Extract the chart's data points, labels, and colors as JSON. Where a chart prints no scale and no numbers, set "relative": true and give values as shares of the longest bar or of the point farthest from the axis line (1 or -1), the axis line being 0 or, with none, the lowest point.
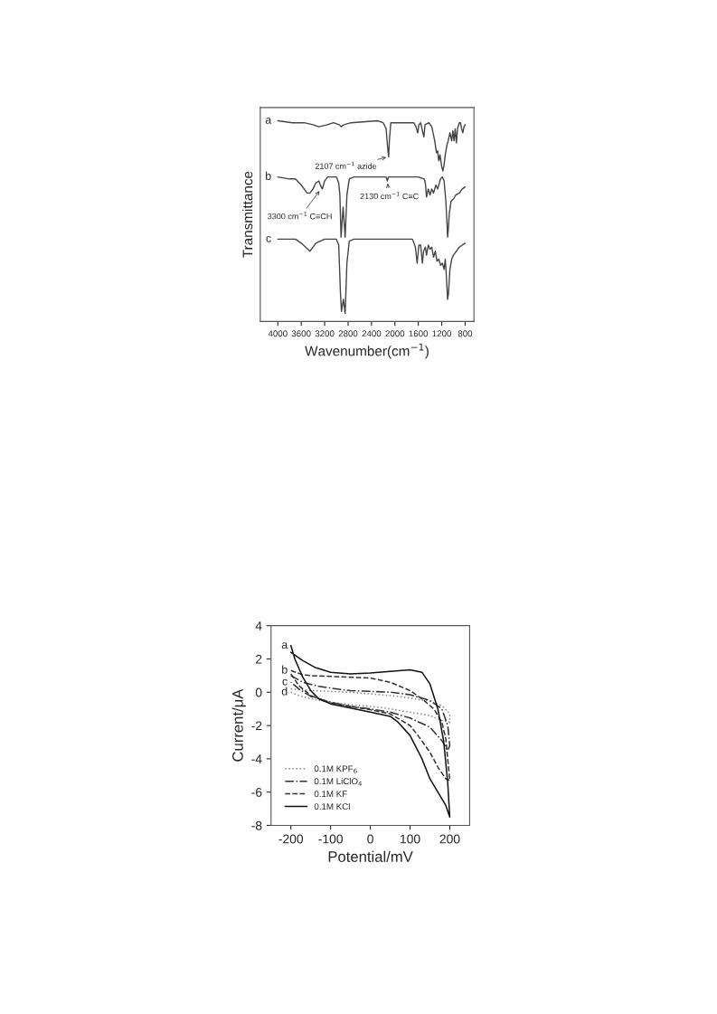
{
  "chart_data": [
    {
      "type": "line",
      "relative": true,
      "xlabel": "Wavenumber(cm$^{−1}$)",
      "ylabel": "Transmittance",
      "xlim": [
        4300,
        650
      ],
      "xticks": [
        4000,
        3600,
        3200,
        2800,
        2400,
        2000,
        1600,
        1200,
        800
      ],
      "grid": false,
      "legend": false,
      "marker": "none",
      "line_style": "solid",
      "series": [
        {
          "name": "a",
          "color": "#444444",
          "x": [
            4000,
            3750,
            3700,
            3550,
            3400,
            3300,
            3150,
            3050,
            2950,
            2920,
            2870,
            2750,
            2300,
            2200,
            2150,
            2120,
            2107,
            2095,
            2070,
            2000,
            1800,
            1720,
            1680,
            1640,
            1610,
            1590,
            1560,
            1530,
            1505,
            1485,
            1420,
            1370,
            1320,
            1290,
            1270,
            1250,
            1230,
            1200,
            1180,
            1160,
            1140,
            1110,
            1090,
            1060,
            1030,
            1010,
            990,
            970,
            950,
            930,
            900,
            880,
            860,
            840,
            820,
            800
          ],
          "values": [
            1.0,
            0.99,
            0.99,
            0.99,
            0.98,
            0.97,
            0.98,
            0.99,
            0.98,
            0.97,
            0.98,
            0.99,
            1.0,
            0.99,
            0.96,
            0.85,
            0.82,
            0.9,
            0.99,
            0.99,
            0.99,
            0.99,
            0.99,
            0.97,
            0.94,
            0.98,
            0.99,
            0.95,
            0.92,
            0.98,
            0.99,
            0.97,
            0.9,
            0.84,
            0.85,
            0.8,
            0.83,
            0.77,
            0.75,
            0.78,
            0.83,
            0.88,
            0.9,
            0.94,
            0.9,
            0.95,
            0.9,
            0.96,
            0.89,
            0.96,
            0.99,
            0.99,
            0.96,
            0.94,
            0.97,
            0.98
          ]
        },
        {
          "name": "b",
          "color": "#444444",
          "x": [
            4000,
            3800,
            3700,
            3600,
            3500,
            3450,
            3400,
            3350,
            3300,
            3260,
            3240,
            3200,
            3150,
            3000,
            2960,
            2940,
            2920,
            2885,
            2850,
            2820,
            2780,
            2700,
            2200,
            2150,
            2130,
            2110,
            1600,
            1500,
            1480,
            1460,
            1430,
            1400,
            1370,
            1340,
            1300,
            1270,
            1220,
            1190,
            1160,
            1130,
            1110,
            1100,
            1090,
            1070,
            1040,
            1000,
            960,
            900,
            850,
            800
          ],
          "values": [
            0.72,
            0.71,
            0.71,
            0.68,
            0.64,
            0.64,
            0.66,
            0.69,
            0.7,
            0.67,
            0.66,
            0.7,
            0.72,
            0.72,
            0.69,
            0.63,
            0.42,
            0.57,
            0.42,
            0.63,
            0.71,
            0.72,
            0.72,
            0.72,
            0.7,
            0.72,
            0.72,
            0.71,
            0.69,
            0.62,
            0.66,
            0.63,
            0.66,
            0.64,
            0.68,
            0.66,
            0.71,
            0.72,
            0.7,
            0.6,
            0.49,
            0.42,
            0.45,
            0.54,
            0.6,
            0.61,
            0.63,
            0.64,
            0.66,
            0.67
          ]
        },
        {
          "name": "c",
          "color": "#444444",
          "x": [
            4000,
            3700,
            3600,
            3450,
            3350,
            3200,
            3000,
            2960,
            2930,
            2913,
            2880,
            2850,
            2820,
            2780,
            2700,
            1800,
            1700,
            1650,
            1620,
            1590,
            1560,
            1530,
            1510,
            1480,
            1460,
            1430,
            1400,
            1370,
            1340,
            1310,
            1280,
            1250,
            1220,
            1190,
            1160,
            1140,
            1120,
            1100,
            1085,
            1060,
            1030,
            1000,
            950,
            900,
            850,
            800
          ],
          "values": [
            0.41,
            0.41,
            0.39,
            0.35,
            0.39,
            0.41,
            0.41,
            0.38,
            0.14,
            0.05,
            0.11,
            0.04,
            0.29,
            0.4,
            0.41,
            0.41,
            0.41,
            0.37,
            0.29,
            0.38,
            0.38,
            0.29,
            0.35,
            0.37,
            0.33,
            0.38,
            0.36,
            0.37,
            0.32,
            0.35,
            0.3,
            0.31,
            0.28,
            0.29,
            0.26,
            0.31,
            0.22,
            0.11,
            0.14,
            0.26,
            0.31,
            0.33,
            0.35,
            0.37,
            0.38,
            0.39
          ]
        }
      ],
      "annotations": [
        {
          "text": "2107 cm$^{−1}$ azide",
          "x": 2107,
          "y": 0.82
        },
        {
          "text": "3300 cm$^{−1}$ C≡CH",
          "x": 3260,
          "y": 0.66
        },
        {
          "text": "2130 cm$^{−1}$ C≡C",
          "x": 2130,
          "y": 0.7
        }
      ]
    },
    {
      "type": "line",
      "xlabel": "Potential/mV",
      "ylabel": "Current/μA",
      "xlim": [
        -250,
        250
      ],
      "xticks": [
        -200,
        -100,
        0,
        100,
        200
      ],
      "ylim": [
        -8,
        4
      ],
      "yticks": [
        -8,
        -6,
        -4,
        -2,
        0,
        2,
        4
      ],
      "grid": false,
      "legend": "bottom left",
      "marker": "none",
      "series": [
        {
          "name": "0.1M KPF$_{6}$",
          "color": "#888888",
          "line_style": "dotted",
          "x": [
            -200,
            -150,
            -100,
            -50,
            0,
            50,
            100,
            150,
            180,
            200,
            200,
            180,
            150,
            100,
            50,
            0,
            -50,
            -100,
            -150,
            -180,
            -200
          ],
          "values": [
            0.2,
            0.1,
            0.05,
            0.0,
            -0.1,
            -0.2,
            -0.35,
            -0.55,
            -0.8,
            -1.3,
            -1.8,
            -1.7,
            -1.4,
            -1.2,
            -1.0,
            -0.85,
            -0.75,
            -0.6,
            -0.4,
            -0.2,
            0.0
          ]
        },
        {
          "name": "0.1M LiClO$_{4}$",
          "color": "#333333",
          "line_style": "dashdot",
          "x": [
            -200,
            -170,
            -130,
            -100,
            -50,
            0,
            50,
            100,
            150,
            180,
            195,
            200,
            195,
            180,
            150,
            100,
            50,
            0,
            -50,
            -100,
            -150,
            -180,
            -200
          ],
          "values": [
            1.0,
            0.6,
            0.35,
            0.25,
            0.1,
            0.05,
            0.0,
            -0.15,
            -0.5,
            -1.0,
            -2.0,
            -3.2,
            -3.5,
            -2.9,
            -2.1,
            -1.55,
            -1.2,
            -1.0,
            -0.85,
            -0.6,
            -0.25,
            0.2,
            0.6
          ]
        },
        {
          "name": "0.1M KF",
          "color": "#333333",
          "line_style": "dashed",
          "x": [
            -200,
            -170,
            -150,
            -100,
            -50,
            0,
            50,
            100,
            130,
            160,
            180,
            190,
            200,
            190,
            170,
            150,
            120,
            100,
            50,
            0,
            -50,
            -100,
            -150,
            -180,
            -200
          ],
          "values": [
            1.3,
            1.05,
            1.0,
            0.95,
            0.9,
            0.85,
            0.6,
            0.1,
            -0.4,
            -1.0,
            -1.8,
            -2.8,
            -5.3,
            -5.2,
            -4.5,
            -3.6,
            -2.6,
            -2.0,
            -1.3,
            -1.05,
            -0.85,
            -0.65,
            -0.2,
            0.4,
            1.1
          ]
        },
        {
          "name": "0.1M KCl",
          "color": "#111111",
          "line_style": "solid",
          "x": [
            -200,
            -170,
            -140,
            -100,
            -50,
            0,
            50,
            100,
            130,
            150,
            170,
            185,
            195,
            200,
            190,
            150,
            130,
            100,
            70,
            50,
            0,
            -50,
            -100,
            -130,
            -150,
            -170,
            -190,
            -200
          ],
          "values": [
            2.4,
            1.9,
            1.5,
            1.2,
            1.1,
            1.15,
            1.25,
            1.35,
            1.2,
            0.5,
            -1.0,
            -3.0,
            -5.5,
            -7.5,
            -6.8,
            -5.2,
            -4.0,
            -2.6,
            -1.8,
            -1.45,
            -1.2,
            -0.95,
            -0.7,
            -0.4,
            0.1,
            0.9,
            2.0,
            2.8
          ]
        }
      ],
      "annotations": [
        {
          "text": "a",
          "x": -200,
          "y": 2.8
        },
        {
          "text": "b",
          "x": -200,
          "y": 1.3
        },
        {
          "text": "c",
          "x": -200,
          "y": 0.6
        },
        {
          "text": "d",
          "x": -200,
          "y": 0.0
        }
      ]
    }
  ]
}
